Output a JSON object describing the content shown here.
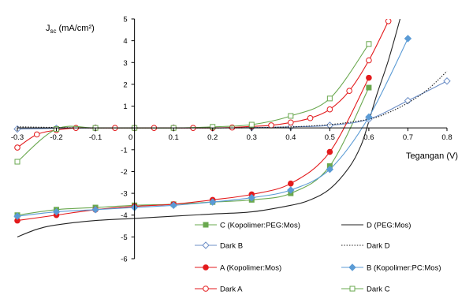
{
  "chart_data": {
    "type": "line",
    "ylabel": "J",
    "ylabel_sub": "sc",
    "ylabel_unit": " (mA/cm²)",
    "xlabel": "Tegangan (V)",
    "xlim": [
      -0.3,
      0.8
    ],
    "ylim": [
      -6,
      5
    ],
    "x_ticks": [
      -0.3,
      -0.2,
      -0.1,
      0,
      0.1,
      0.2,
      0.3,
      0.4,
      0.5,
      0.6,
      0.7,
      0.8
    ],
    "x_tick_labels": [
      "-0.3",
      "-0.2",
      "-0.1",
      "0",
      "0.1",
      "0.2",
      "0.3",
      "0.4",
      "0.5",
      "0.6",
      "0.7",
      "0.8"
    ],
    "y_ticks": [
      -6,
      -5,
      -4,
      -3,
      -2,
      -1,
      0,
      1,
      2,
      3,
      4,
      5
    ],
    "y_tick_labels": [
      "-6",
      "-5",
      "-4",
      "-3",
      "-2",
      "-1",
      "0",
      "1",
      "2",
      "3",
      "4",
      "5"
    ],
    "grid": false,
    "legend_position": "bottom-right, inside plot, two columns",
    "series": [
      {
        "name": "C (Kopolimer:PEG:Mos)",
        "color": "#6aa84f",
        "line": "solid",
        "marker": "square-filled",
        "curve_id": "c",
        "x": [
          -0.3,
          -0.2,
          -0.1,
          0,
          0.1,
          0.2,
          0.3,
          0.4,
          0.5,
          0.6
        ],
        "y": [
          -4.0,
          -3.75,
          -3.65,
          -3.55,
          -3.5,
          -3.4,
          -3.3,
          -3.0,
          -1.75,
          1.85
        ]
      },
      {
        "name": "D (PEG:Mos)",
        "color": "#222222",
        "line": "solid",
        "marker": "none",
        "curve_id": "d",
        "x": [
          -0.3,
          -0.25,
          -0.2,
          -0.1,
          0,
          0.1,
          0.2,
          0.3,
          0.4,
          0.45,
          0.5,
          0.55,
          0.58,
          0.6,
          0.62,
          0.65,
          0.68
        ],
        "y": [
          -5.0,
          -4.65,
          -4.45,
          -4.25,
          -4.15,
          -4.05,
          -3.95,
          -3.85,
          -3.55,
          -3.3,
          -2.8,
          -1.8,
          -0.8,
          0.3,
          1.5,
          3.1,
          5.0
        ]
      },
      {
        "name": "Dark B",
        "color": "#6d8fc7",
        "line": "solid",
        "marker": "diamond-open",
        "curve_id": "darkb",
        "x": [
          -0.3,
          -0.2,
          -0.1,
          0,
          0.1,
          0.2,
          0.3,
          0.4,
          0.5,
          0.6,
          0.7,
          0.8
        ],
        "y": [
          -0.05,
          -0.02,
          0,
          0,
          0,
          0,
          0.02,
          0.05,
          0.12,
          0.4,
          1.25,
          2.15
        ]
      },
      {
        "name": "Dark D",
        "color": "#222222",
        "line": "dotted",
        "marker": "none",
        "curve_id": "darkd",
        "x": [
          -0.3,
          -0.2,
          -0.1,
          0,
          0.1,
          0.2,
          0.3,
          0.4,
          0.5,
          0.6,
          0.65,
          0.7,
          0.75,
          0.8
        ],
        "y": [
          0.05,
          0.02,
          0,
          0,
          0,
          0,
          0.01,
          0.05,
          0.15,
          0.4,
          0.7,
          1.15,
          1.75,
          2.6
        ]
      },
      {
        "name": "A (Kopolimer:Mos)",
        "color": "#e31a1c",
        "line": "solid",
        "marker": "circle-filled",
        "curve_id": "a",
        "x": [
          -0.3,
          -0.2,
          -0.1,
          0,
          0.1,
          0.2,
          0.3,
          0.4,
          0.5,
          0.6
        ],
        "y": [
          -4.25,
          -4.0,
          -3.75,
          -3.6,
          -3.5,
          -3.3,
          -3.05,
          -2.55,
          -1.1,
          2.3
        ]
      },
      {
        "name": "B (Kopolimer:PC:Mos)",
        "color": "#5b9bd5",
        "line": "solid",
        "marker": "diamond-filled",
        "curve_id": "b",
        "x": [
          -0.3,
          -0.2,
          -0.1,
          0,
          0.1,
          0.2,
          0.3,
          0.4,
          0.5,
          0.6,
          0.7
        ],
        "y": [
          -4.05,
          -3.85,
          -3.75,
          -3.65,
          -3.55,
          -3.4,
          -3.2,
          -2.85,
          -1.9,
          0.5,
          4.1
        ]
      },
      {
        "name": "Dark A",
        "color": "#e31a1c",
        "line": "solid",
        "marker": "circle-open",
        "curve_id": "darka",
        "x": [
          -0.3,
          -0.25,
          -0.2,
          -0.15,
          -0.1,
          -0.05,
          0,
          0.05,
          0.1,
          0.15,
          0.2,
          0.25,
          0.3,
          0.35,
          0.4,
          0.45,
          0.5,
          0.55,
          0.6,
          0.65
        ],
        "y": [
          -0.9,
          -0.3,
          -0.1,
          0,
          0,
          0,
          0,
          0,
          0,
          0,
          0,
          0.02,
          0.07,
          0.12,
          0.25,
          0.45,
          0.85,
          1.7,
          3.1,
          4.9
        ]
      },
      {
        "name": "Dark C",
        "color": "#6aa84f",
        "line": "solid",
        "marker": "square-open",
        "curve_id": "darkc",
        "x": [
          -0.3,
          -0.2,
          -0.1,
          0,
          0.1,
          0.2,
          0.3,
          0.4,
          0.5,
          0.6
        ],
        "y": [
          -1.55,
          -0.05,
          0,
          0,
          0,
          0.05,
          0.15,
          0.55,
          1.35,
          3.85
        ]
      }
    ]
  }
}
